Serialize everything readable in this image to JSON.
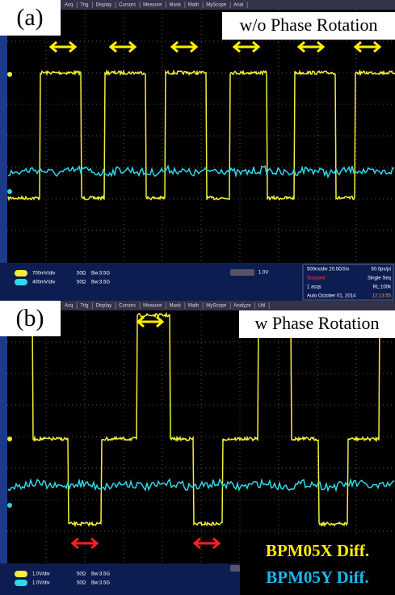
{
  "panels": [
    {
      "label": "(a)",
      "caption": "w/o Phase Rotation",
      "menu": [
        "Acq",
        "Trig",
        "Display",
        "Cursors",
        "Measure",
        "Mask",
        "Math",
        "MyScope",
        "Anal"
      ],
      "channels": [
        [
          "700mV/div",
          "50Ω",
          "Bw:3.5G"
        ],
        [
          "400mV/div",
          "50Ω",
          "Bw:3.5G"
        ]
      ],
      "trigger": "1.0V",
      "timebase": [
        [
          "500ns/div 20.0GS/s",
          "50.0ps/pt"
        ],
        [
          "Stopped",
          "Single Seq"
        ],
        [
          "1 acqs",
          "RL:100k"
        ],
        [
          "Auto October 01, 2014",
          "12:13:55"
        ]
      ]
    },
    {
      "label": "(b)",
      "caption": "w Phase Rotation",
      "menu": [
        "Acq",
        "Trig",
        "Display",
        "Cursors",
        "Measure",
        "Mask",
        "Math",
        "MyScope",
        "Analyze",
        "Util"
      ],
      "channels": [
        [
          "1.0V/div",
          "50Ω",
          "Bw:3.5G"
        ],
        [
          "1.0V/div",
          "50Ω",
          "Bw:3.5G"
        ]
      ]
    }
  ],
  "legend": [
    "BPM05X Diff.",
    "BPM05Y Diff."
  ]
}
